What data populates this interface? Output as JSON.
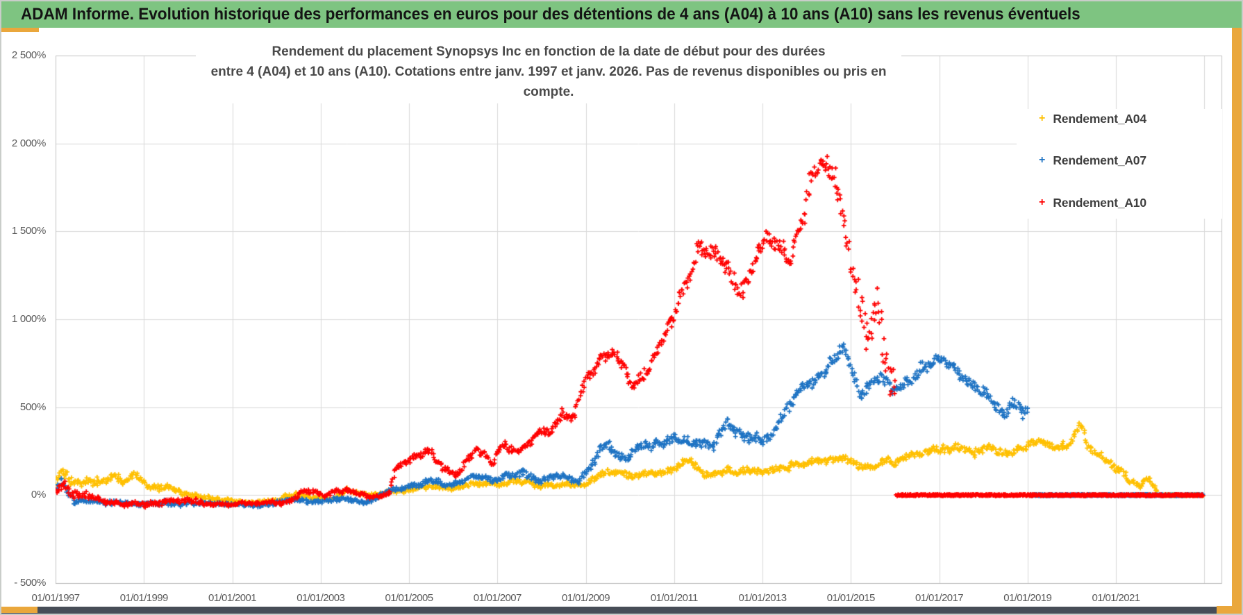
{
  "header": {
    "title": "ADAM Informe. Evolution historique des performances en euros pour des détentions de 4 ans (A04) à 10 ans (A10) sans les revenus éventuels"
  },
  "theme": {
    "background": "#FFFFFF",
    "header_bg": "#7EC481",
    "header_text": "#141414",
    "accent_gold": "#EAA73C",
    "bottom_bar": "#474D57",
    "grid": "#D9D9D9",
    "plot_border": "#C4C4C4",
    "axis_line": "#B3B3B3",
    "axis_text": "#595959",
    "title_text": "#4A4A4A"
  },
  "chart_data": {
    "type": "scatter",
    "marker": "plus",
    "title_line1": "Rendement du placement Synopsys Inc en fonction de la date de début pour des durées",
    "title_line2": "entre 4 (A04) et 10 ans (A10). Cotations entre janv. 1997 et janv. 2026. Pas de revenus disponibles ou pris en compte.",
    "legend_position": "right-inside",
    "x_axis": {
      "min": 1997.0,
      "max": 2023.05,
      "gridline_years": [
        1997,
        1999,
        2001,
        2003,
        2005,
        2007,
        2009,
        2011,
        2013,
        2015,
        2017,
        2019,
        2021,
        2023
      ],
      "ticks": [
        {
          "year": 1997,
          "label": "01/01/1997"
        },
        {
          "year": 1999,
          "label": "01/01/1999"
        },
        {
          "year": 2001,
          "label": "01/01/2001"
        },
        {
          "year": 2003,
          "label": "01/01/2003"
        },
        {
          "year": 2005,
          "label": "01/01/2005"
        },
        {
          "year": 2007,
          "label": "01/01/2007"
        },
        {
          "year": 2009,
          "label": "01/01/2009"
        },
        {
          "year": 2011,
          "label": "01/01/2011"
        },
        {
          "year": 2013,
          "label": "01/01/2013"
        },
        {
          "year": 2015,
          "label": "01/01/2015"
        },
        {
          "year": 2017,
          "label": "01/01/2017"
        },
        {
          "year": 2019,
          "label": "01/01/2019"
        },
        {
          "year": 2021,
          "label": "01/01/2021"
        }
      ]
    },
    "y_axis": {
      "min": -500,
      "max": 2500,
      "unit": "%",
      "ticks": [
        {
          "value": 2500,
          "label": "2 500%"
        },
        {
          "value": 2000,
          "label": "2 000%"
        },
        {
          "value": 1500,
          "label": "1 500%"
        },
        {
          "value": 1000,
          "label": "1 000%"
        },
        {
          "value": 500,
          "label": "500%"
        },
        {
          "value": 0,
          "label": "0%"
        },
        {
          "value": -500,
          "label": "- 500%"
        }
      ]
    },
    "points_format": "[start_year_decimal, return_pct, scatter_halfwidth_pct]",
    "zero_segment_end": 2022.97,
    "series": [
      {
        "name": "Rendement_A04",
        "color": "#FFC000",
        "seed": 11,
        "zero_from": 2022.0,
        "points": [
          [
            1997.0,
            60,
            50
          ],
          [
            1997.12,
            165,
            45
          ],
          [
            1997.35,
            75,
            40
          ],
          [
            1997.6,
            55,
            35
          ],
          [
            1998.0,
            75,
            35
          ],
          [
            1998.25,
            105,
            35
          ],
          [
            1998.5,
            85,
            30
          ],
          [
            1998.8,
            100,
            30
          ],
          [
            1999.1,
            45,
            25
          ],
          [
            1999.5,
            55,
            25
          ],
          [
            2000.0,
            10,
            20
          ],
          [
            2000.5,
            -15,
            15
          ],
          [
            2001.0,
            -30,
            14
          ],
          [
            2001.5,
            -45,
            12
          ],
          [
            2002.0,
            -30,
            14
          ],
          [
            2002.4,
            5,
            18
          ],
          [
            2002.8,
            -15,
            15
          ],
          [
            2003.2,
            -30,
            13
          ],
          [
            2003.6,
            25,
            18
          ],
          [
            2004.0,
            5,
            15
          ],
          [
            2004.5,
            15,
            15
          ],
          [
            2005.0,
            35,
            18
          ],
          [
            2005.5,
            55,
            20
          ],
          [
            2006.0,
            35,
            18
          ],
          [
            2006.5,
            65,
            20
          ],
          [
            2007.0,
            55,
            20
          ],
          [
            2007.5,
            85,
            22
          ],
          [
            2008.0,
            45,
            20
          ],
          [
            2008.5,
            65,
            22
          ],
          [
            2009.0,
            55,
            22
          ],
          [
            2009.5,
            140,
            28
          ],
          [
            2010.0,
            115,
            25
          ],
          [
            2010.5,
            120,
            25
          ],
          [
            2011.0,
            150,
            28
          ],
          [
            2011.3,
            205,
            30
          ],
          [
            2011.7,
            130,
            28
          ],
          [
            2012.1,
            120,
            25
          ],
          [
            2012.6,
            140,
            25
          ],
          [
            2013.1,
            130,
            25
          ],
          [
            2013.6,
            165,
            28
          ],
          [
            2014.0,
            185,
            28
          ],
          [
            2014.5,
            215,
            28
          ],
          [
            2014.9,
            225,
            30
          ],
          [
            2015.3,
            160,
            30
          ],
          [
            2015.7,
            190,
            28
          ],
          [
            2016.1,
            205,
            28
          ],
          [
            2016.5,
            230,
            28
          ],
          [
            2017.0,
            255,
            30
          ],
          [
            2017.4,
            280,
            30
          ],
          [
            2017.8,
            245,
            28
          ],
          [
            2018.2,
            265,
            30
          ],
          [
            2018.6,
            235,
            28
          ],
          [
            2019.0,
            280,
            30
          ],
          [
            2019.4,
            300,
            30
          ],
          [
            2019.75,
            250,
            30
          ],
          [
            2020.0,
            300,
            35
          ],
          [
            2020.18,
            420,
            40
          ],
          [
            2020.4,
            270,
            35
          ],
          [
            2020.7,
            210,
            30
          ],
          [
            2021.0,
            150,
            30
          ],
          [
            2021.3,
            75,
            25
          ],
          [
            2021.55,
            55,
            22
          ],
          [
            2021.7,
            95,
            22
          ],
          [
            2021.95,
            15,
            12
          ]
        ]
      },
      {
        "name": "Rendement_A07",
        "color": "#1E73C3",
        "seed": 22,
        "zero_from": 2019.05,
        "points": [
          [
            1997.0,
            40,
            40
          ],
          [
            1997.15,
            110,
            40
          ],
          [
            1997.45,
            -20,
            25
          ],
          [
            1998.0,
            -40,
            20
          ],
          [
            1999.0,
            -55,
            15
          ],
          [
            2000.0,
            -45,
            18
          ],
          [
            2001.0,
            -60,
            14
          ],
          [
            2002.0,
            -50,
            15
          ],
          [
            2002.5,
            -25,
            18
          ],
          [
            2003.0,
            -45,
            15
          ],
          [
            2003.6,
            -10,
            18
          ],
          [
            2004.1,
            -35,
            15
          ],
          [
            2004.6,
            25,
            20
          ],
          [
            2005.0,
            55,
            20
          ],
          [
            2005.5,
            85,
            25
          ],
          [
            2006.0,
            55,
            20
          ],
          [
            2006.5,
            115,
            25
          ],
          [
            2006.9,
            75,
            22
          ],
          [
            2007.2,
            105,
            25
          ],
          [
            2007.6,
            125,
            25
          ],
          [
            2008.0,
            80,
            25
          ],
          [
            2008.4,
            110,
            25
          ],
          [
            2008.8,
            75,
            25
          ],
          [
            2009.1,
            160,
            35
          ],
          [
            2009.35,
            280,
            40
          ],
          [
            2009.9,
            215,
            35
          ],
          [
            2010.3,
            280,
            35
          ],
          [
            2010.7,
            300,
            35
          ],
          [
            2011.1,
            320,
            35
          ],
          [
            2011.5,
            305,
            35
          ],
          [
            2011.9,
            265,
            35
          ],
          [
            2012.2,
            400,
            40
          ],
          [
            2012.6,
            345,
            40
          ],
          [
            2013.1,
            315,
            40
          ],
          [
            2013.5,
            470,
            45
          ],
          [
            2013.85,
            580,
            45
          ],
          [
            2014.2,
            640,
            50
          ],
          [
            2014.5,
            730,
            50
          ],
          [
            2014.85,
            835,
            45
          ],
          [
            2015.2,
            560,
            50
          ],
          [
            2015.7,
            690,
            45
          ],
          [
            2016.0,
            600,
            45
          ],
          [
            2016.3,
            660,
            45
          ],
          [
            2016.7,
            730,
            40
          ],
          [
            2017.0,
            770,
            40
          ],
          [
            2017.3,
            730,
            40
          ],
          [
            2017.6,
            650,
            45
          ],
          [
            2017.9,
            600,
            40
          ],
          [
            2018.2,
            545,
            45
          ],
          [
            2018.5,
            480,
            45
          ],
          [
            2018.7,
            545,
            40
          ],
          [
            2018.9,
            450,
            45
          ],
          [
            2019.0,
            480,
            40
          ]
        ]
      },
      {
        "name": "Rendement_A10",
        "color": "#FF0000",
        "seed": 33,
        "zero_from": 2016.03,
        "points": [
          [
            1997.0,
            20,
            40
          ],
          [
            1997.15,
            70,
            50
          ],
          [
            1997.4,
            -10,
            30
          ],
          [
            1998.0,
            -35,
            25
          ],
          [
            1999.0,
            -50,
            20
          ],
          [
            2000.0,
            -30,
            25
          ],
          [
            2000.5,
            -55,
            15
          ],
          [
            2001.5,
            -50,
            15
          ],
          [
            2002.3,
            -30,
            20
          ],
          [
            2002.7,
            25,
            20
          ],
          [
            2003.1,
            0,
            15
          ],
          [
            2003.6,
            35,
            20
          ],
          [
            2004.1,
            -10,
            15
          ],
          [
            2004.55,
            5,
            15
          ],
          [
            2004.68,
            140,
            30
          ],
          [
            2005.0,
            215,
            30
          ],
          [
            2005.4,
            245,
            30
          ],
          [
            2005.8,
            150,
            25
          ],
          [
            2006.1,
            125,
            25
          ],
          [
            2006.5,
            265,
            30
          ],
          [
            2006.9,
            195,
            25
          ],
          [
            2007.15,
            280,
            30
          ],
          [
            2007.5,
            240,
            25
          ],
          [
            2007.9,
            330,
            35
          ],
          [
            2008.2,
            380,
            35
          ],
          [
            2008.5,
            480,
            35
          ],
          [
            2008.7,
            425,
            30
          ],
          [
            2009.0,
            640,
            45
          ],
          [
            2009.35,
            790,
            45
          ],
          [
            2009.7,
            780,
            40
          ],
          [
            2010.1,
            620,
            45
          ],
          [
            2010.45,
            720,
            45
          ],
          [
            2010.7,
            870,
            50
          ],
          [
            2011.0,
            1030,
            55
          ],
          [
            2011.3,
            1210,
            70
          ],
          [
            2011.55,
            1440,
            80
          ],
          [
            2011.8,
            1350,
            70
          ],
          [
            2012.1,
            1290,
            70
          ],
          [
            2012.45,
            1180,
            70
          ],
          [
            2012.7,
            1190,
            60
          ],
          [
            2013.05,
            1500,
            70
          ],
          [
            2013.3,
            1460,
            70
          ],
          [
            2013.6,
            1340,
            80
          ],
          [
            2013.9,
            1640,
            90
          ],
          [
            2014.15,
            1820,
            80
          ],
          [
            2014.4,
            1880,
            70
          ],
          [
            2014.65,
            1750,
            90
          ],
          [
            2014.9,
            1450,
            120
          ],
          [
            2015.1,
            1220,
            150
          ],
          [
            2015.35,
            900,
            180
          ],
          [
            2015.6,
            1050,
            200
          ],
          [
            2015.8,
            800,
            200
          ],
          [
            2016.0,
            620,
            120
          ]
        ]
      }
    ]
  }
}
